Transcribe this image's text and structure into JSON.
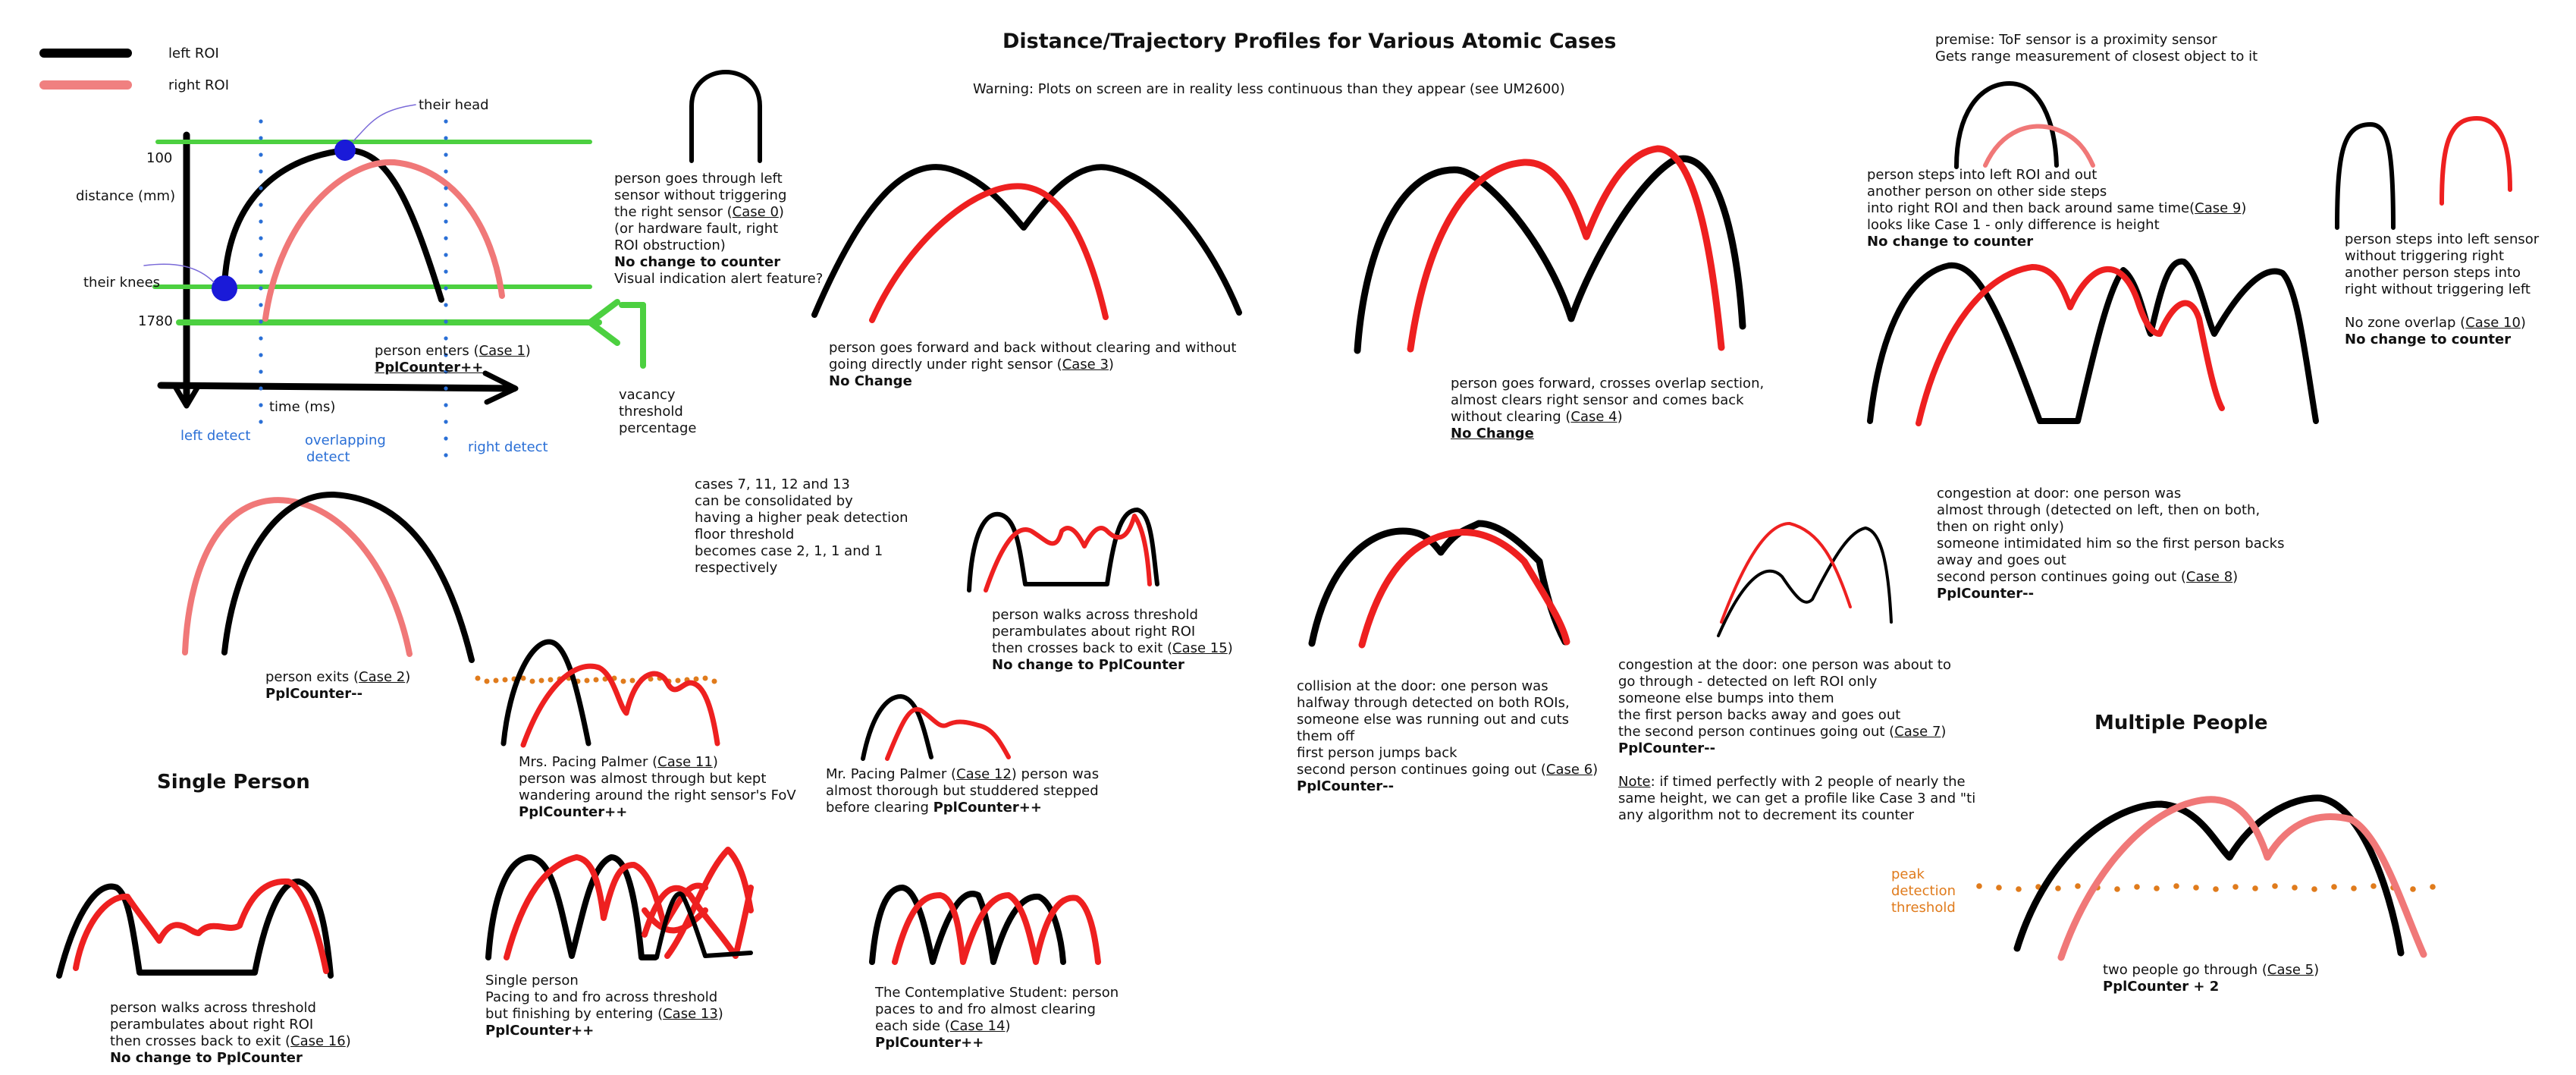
{
  "colors": {
    "left_roi": "#000000",
    "right_roi_legend": "#f08080",
    "red_stroke": "#ee2020",
    "pink_stroke": "#f07878",
    "threshold_green": "#4cd040",
    "marker_blue": "#1a1ad8",
    "detect_dots": "#2a6fd6",
    "peak_dots": "#e07b1c"
  },
  "title": "Distance/Trajectory Profiles for Various Atomic Cases",
  "warning": "Warning: Plots on screen are in reality less continuous than they appear (see UM2600)",
  "premise": [
    "premise: ToF sensor is a proximity sensor",
    "Gets range measurement of closest object to it"
  ],
  "legend": {
    "left": "left ROI",
    "right": "right ROI"
  },
  "axes": {
    "y100": "100",
    "ylabel": "distance (mm)",
    "knees": "their knees",
    "y1780": "1780",
    "head": "their head",
    "xlabel": "time (ms)",
    "left_detect": "left detect",
    "overlap_1": "overlapping",
    "overlap_2": "detect",
    "right_detect": "right detect",
    "vacancy": [
      "vacancy",
      "threshold",
      "percentage"
    ]
  },
  "sections": {
    "single": "Single Person",
    "multiple": "Multiple People"
  },
  "peak_threshold": [
    "peak",
    "detection",
    "threshold"
  ],
  "captions": {
    "case1": {
      "text": "person enters (",
      "case": "Case 1",
      "close": ")",
      "bold": "PplCounter++"
    },
    "case0": {
      "l1": "person goes through left",
      "l2": "sensor without triggering",
      "l3": "the right sensor (",
      "case": "Case 0",
      "close": ")",
      "l4": "(or hardware fault, right",
      "l5": " ROI obstruction)",
      "bold": "No change to counter",
      "l6": "Visual indication alert feature?"
    },
    "case3": {
      "l1": "person goes forward and back without clearing and without",
      "l2": "going directly under right sensor (",
      "case": "Case 3",
      "close": ")",
      "bold": "No Change"
    },
    "case4": {
      "l1": "person goes forward, crosses overlap section,",
      "l2": "almost clears right sensor and comes back",
      "l3": "without clearing (",
      "case": "Case 4",
      "close": ")",
      "bold": "No Change"
    },
    "case9": {
      "l1": "person steps into left ROI and out",
      "l2": "another person on other side steps",
      "l3": "    into right ROI and then back around same time(",
      "case": "Case 9",
      "close": ")",
      "l4": "looks like Case 1 - only difference is height",
      "bold": "No change to counter"
    },
    "case10": {
      "l1": "person steps into left sensor",
      "l2": "without triggering right",
      "l3": "another person steps into",
      "l4": "right without triggering left",
      "l5": "No zone overlap (",
      "case": "Case 10",
      "close": ")",
      "bold": "No change to counter"
    },
    "consolidate": [
      "cases 7, 11, 12 and 13",
      "can be consolidated by",
      "having a higher peak detection",
      "floor threshold",
      "becomes case 2, 1, 1  and 1",
      "respectively"
    ],
    "case15": {
      "l1": "person walks across threshold",
      "l2": "perambulates about right ROI",
      "l3": "then crosses back to exit (",
      "case": "Case 15",
      "close": ")",
      "bold": "No change to PplCounter"
    },
    "case2": {
      "text": "person exits (",
      "case": "Case 2",
      "close": ")",
      "bold": "PplCounter--"
    },
    "case11": {
      "l1": "Mrs. Pacing Palmer (",
      "case": "Case 11",
      "close": ")",
      "l2": "person was almost through but kept",
      "l3": "wandering around the right sensor's FoV",
      "bold": "PplCounter++"
    },
    "case12": {
      "l1": "Mr. Pacing Palmer (",
      "case": "Case 12",
      "close": ") person was",
      "l2": "almost thorough but studdered stepped",
      "l3": "before clearing ",
      "bold": "PplCounter++"
    },
    "case6": {
      "l1": "collision at the door: one person was",
      "l2": "halfway through detected on both ROIs,",
      "l3": "someone else was running out and cuts",
      "l4": "them off",
      "l5": "first person jumps back",
      "l6": "second person continues going out (",
      "case": "Case 6",
      "close": ")",
      "bold": "PplCounter--"
    },
    "case7": {
      "l1": "congestion at the door: one person was about to",
      "l2": "go  through - detected on left ROI only",
      "l3": "someone else bumps into them",
      "l4": "the first person backs away and goes out",
      "l5": "the second person continues going out (",
      "case": "Case 7",
      "close": ")",
      "bold": "PplCounter--",
      "note_label": "Note",
      "n1": ": if timed perfectly with 2 people of nearly the",
      "n2": "same height, we can get a profile like Case 3 and \"ti",
      "n3": "any algorithm not to decrement its counter"
    },
    "case8": {
      "l1": "congestion at door: one person was",
      "l2": "almost through (detected on left, then on both,",
      "l3": "then on right only)",
      "l4": "someone intimidated him so the first person backs",
      "l5": "away and goes out",
      "l6": "second person continues going out (",
      "case": "Case 8",
      "close": ")",
      "bold": "PplCounter--"
    },
    "case16": {
      "l1": "person walks across threshold",
      "l2": "perambulates about right ROI",
      "l3": "then crosses back to exit (",
      "case": "Case 16",
      "close": ")",
      "bold": "No change to PplCounter"
    },
    "case13": {
      "l1": "Single person",
      "l2": "Pacing to and fro across threshold",
      "l3": "but finishing by entering (",
      "case": "Case 13",
      "close": ")",
      "bold": "PplCounter++"
    },
    "case14": {
      "l1": "The Contemplative Student: person",
      "l2": "paces to and fro almost clearing",
      "l3": "each side (",
      "case": "Case 14",
      "close": ")",
      "bold": "PplCounter++"
    },
    "case5": {
      "l1": "two people go through (",
      "case": "Case 5",
      "close": ")",
      "bold": "PplCounter + 2"
    }
  }
}
